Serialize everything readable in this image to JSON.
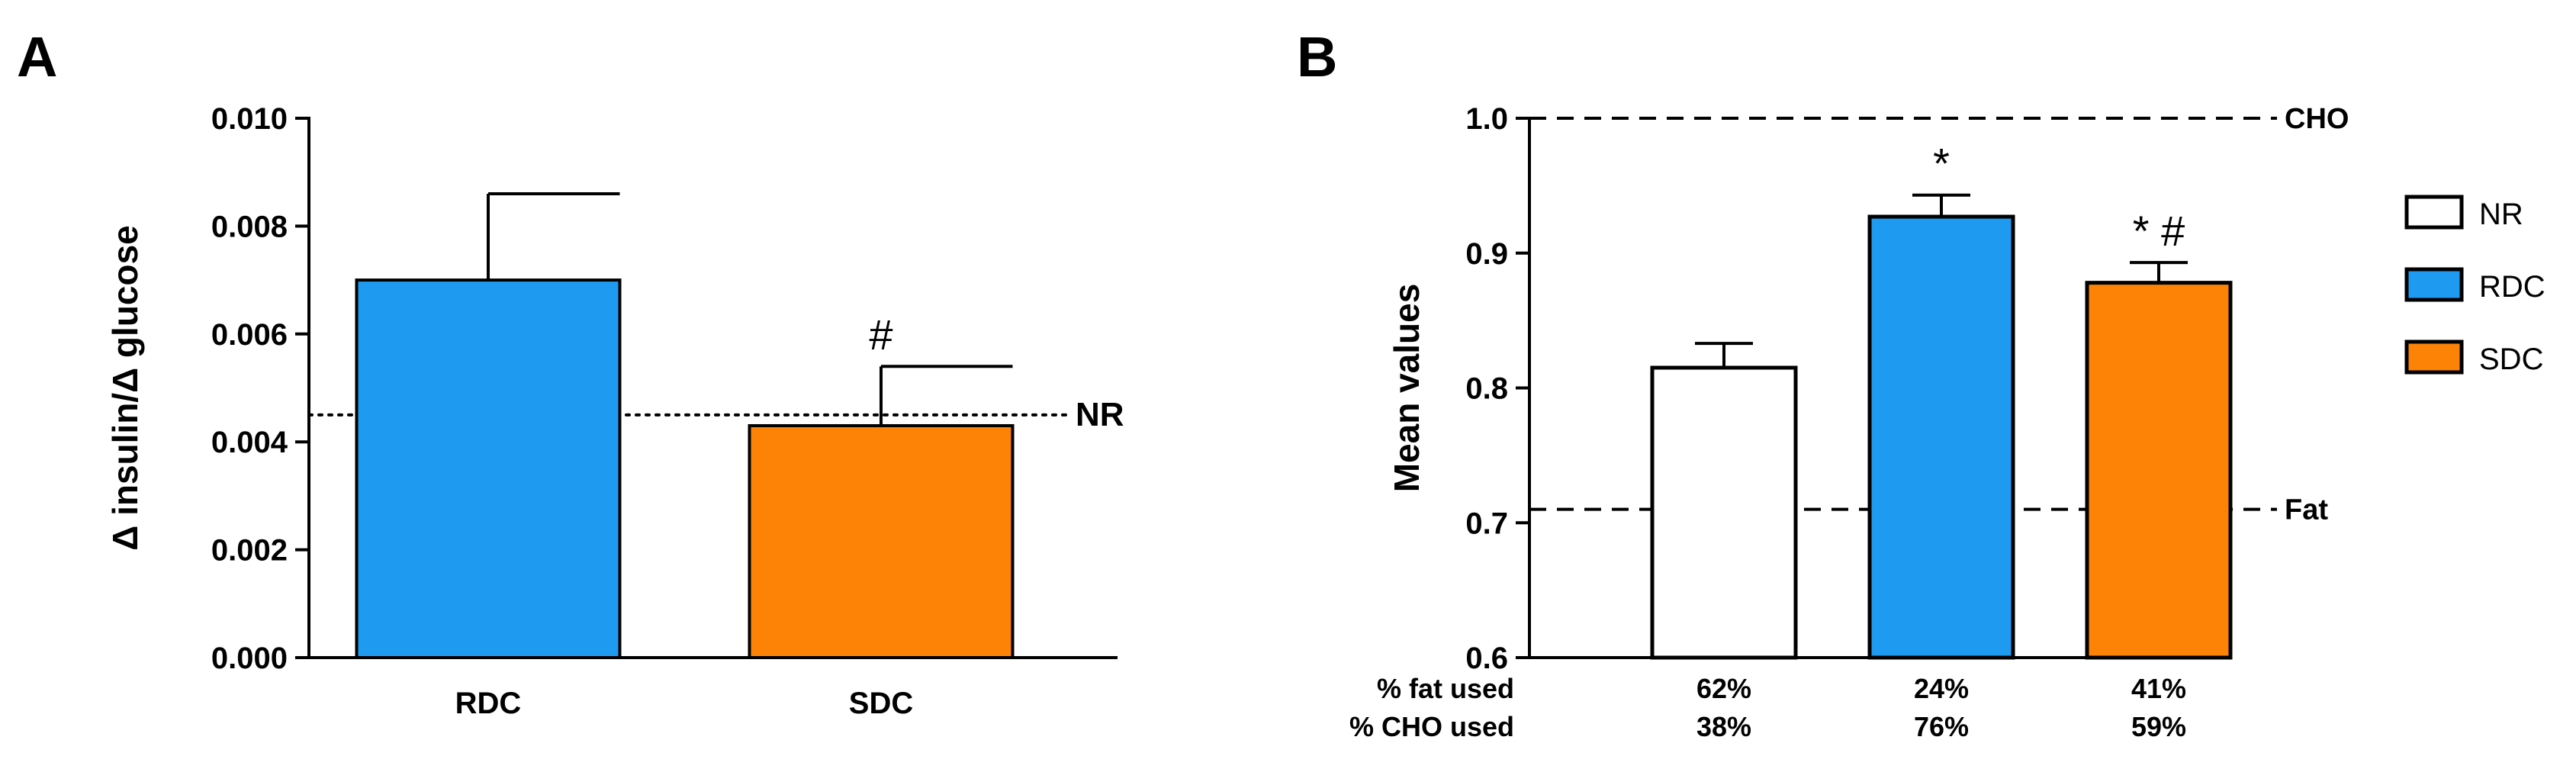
{
  "chart_data": [
    {
      "panel": "A",
      "type": "bar",
      "title": "",
      "xlabel": "",
      "ylabel": "Δ insulin/Δ glucose",
      "ylim": [
        0,
        0.01
      ],
      "yticks": [
        "0.000",
        "0.002",
        "0.004",
        "0.006",
        "0.008",
        "0.010"
      ],
      "categories": [
        "RDC",
        "SDC"
      ],
      "values": [
        0.007,
        0.0043
      ],
      "errors": [
        0.0016,
        0.0011
      ],
      "colors": [
        "#1e9bf0",
        "#fd8307"
      ],
      "annotations": [
        "",
        "#"
      ],
      "reference_line": {
        "label": "NR",
        "value": 0.0045,
        "style": "dotted"
      }
    },
    {
      "panel": "B",
      "type": "bar",
      "title": "",
      "xlabel": "",
      "ylabel": "Mean values",
      "ylim": [
        0.6,
        1.0
      ],
      "yticks": [
        "0.6",
        "0.7",
        "0.8",
        "0.9",
        "1.0"
      ],
      "categories": [
        "NR",
        "RDC",
        "SDC"
      ],
      "values": [
        0.815,
        0.927,
        0.878
      ],
      "errors": [
        0.018,
        0.016,
        0.015
      ],
      "colors": [
        "#ffffff",
        "#1e9bf0",
        "#fd8307"
      ],
      "annotations": [
        "",
        "*",
        "* #"
      ],
      "reference_lines": [
        {
          "label": "CHO",
          "value": 1.0,
          "style": "dashed"
        },
        {
          "label": "Fat",
          "value": 0.71,
          "style": "dashed"
        }
      ],
      "legend": {
        "position": "right",
        "entries": [
          {
            "label": "NR",
            "color": "#ffffff"
          },
          {
            "label": "RDC",
            "color": "#1e9bf0"
          },
          {
            "label": "SDC",
            "color": "#fd8307"
          }
        ]
      },
      "footer_rows": [
        {
          "label": "% fat used",
          "values": [
            "62%",
            "24%",
            "41%"
          ]
        },
        {
          "label": "% CHO used",
          "values": [
            "38%",
            "76%",
            "59%"
          ]
        }
      ]
    }
  ]
}
